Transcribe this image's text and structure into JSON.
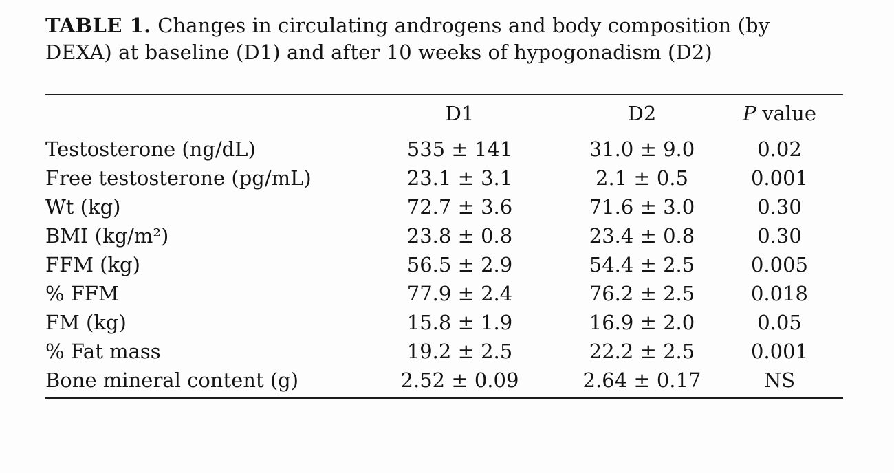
{
  "page": {
    "background": "#fdfdfd",
    "text_color": "#141414",
    "rule_color": "#1c1c1c"
  },
  "table": {
    "title": {
      "label": "TABLE 1.",
      "text": "Changes in circulating androgens and body composition (by DEXA) at baseline (D1) and after 10 weeks of hypogonadism (D2)"
    },
    "header": {
      "metric": "",
      "col_d1": "D1",
      "col_d2": "D2",
      "p_italic": "P",
      "p_rest": "value"
    },
    "rows": [
      {
        "label": "Testosterone (ng/dL)",
        "d1": "535 ± 141",
        "d2": "31.0 ± 9.0",
        "p": "0.02"
      },
      {
        "label": "Free testosterone (pg/mL)",
        "d1": "23.1 ± 3.1",
        "d2": "2.1 ± 0.5",
        "p": "0.001"
      },
      {
        "label": "Wt (kg)",
        "d1": "72.7 ± 3.6",
        "d2": "71.6 ± 3.0",
        "p": "0.30"
      },
      {
        "label": "BMI (kg/m²)",
        "d1": "23.8 ± 0.8",
        "d2": "23.4 ± 0.8",
        "p": "0.30"
      },
      {
        "label": "FFM (kg)",
        "d1": "56.5 ± 2.9",
        "d2": "54.4 ± 2.5",
        "p": "0.005"
      },
      {
        "label": "% FFM",
        "d1": "77.9 ± 2.4",
        "d2": "76.2 ± 2.5",
        "p": "0.018"
      },
      {
        "label": "FM (kg)",
        "d1": "15.8 ± 1.9",
        "d2": "16.9 ± 2.0",
        "p": "0.05"
      },
      {
        "label": "% Fat mass",
        "d1": "19.2 ± 2.5",
        "d2": "22.2 ± 2.5",
        "p": "0.001"
      },
      {
        "label": "Bone mineral content (g)",
        "d1": "2.52 ± 0.09",
        "d2": "2.64 ± 0.17",
        "p": "NS"
      }
    ]
  }
}
